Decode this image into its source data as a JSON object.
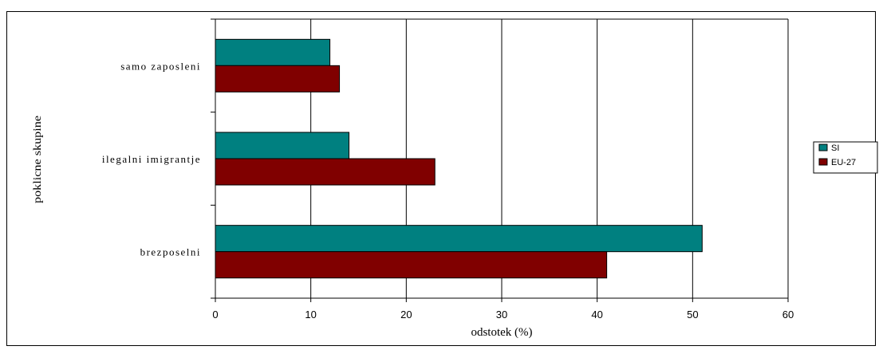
{
  "chart_data": {
    "type": "bar",
    "orientation": "horizontal",
    "categories": [
      "samo zaposleni",
      "ilegalni imigrantje",
      "brezposelni"
    ],
    "series": [
      {
        "name": "SI",
        "values": [
          12,
          14,
          51
        ],
        "color": "#008080"
      },
      {
        "name": "EU-27",
        "values": [
          13,
          23,
          41
        ],
        "color": "#800000"
      }
    ],
    "xlabel": "odstotek (%)",
    "ylabel": "poklicne skupine",
    "xlim": [
      0,
      60
    ],
    "xticks": [
      0,
      10,
      20,
      30,
      40,
      50,
      60
    ],
    "grid": true,
    "legend_position": "right"
  }
}
